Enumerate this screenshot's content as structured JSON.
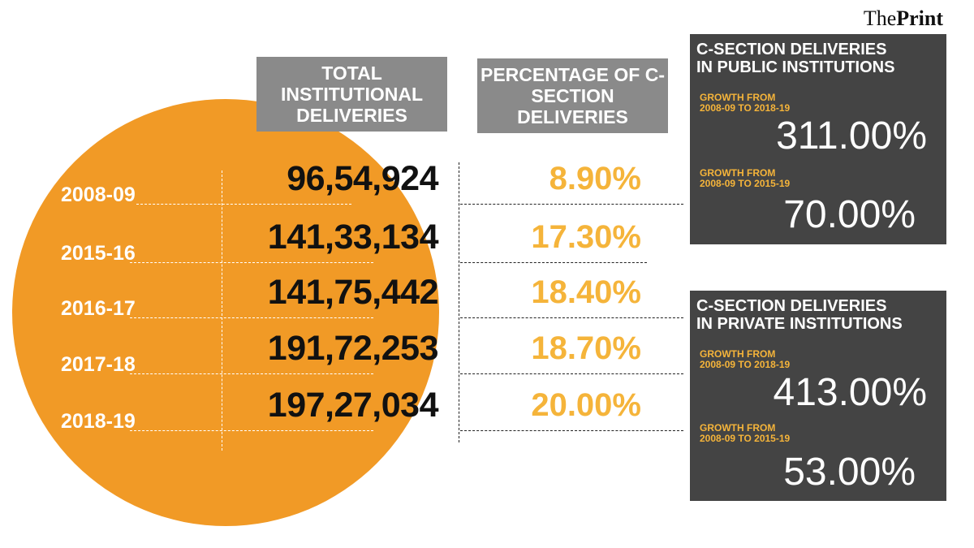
{
  "brand": {
    "logo_light": "The",
    "logo_bold": "Print"
  },
  "headers": {
    "total": "TOTAL INSTITUTIONAL DELIVERIES",
    "percentage": "PERCENTAGE OF C-SECTION DELIVERIES"
  },
  "chart_data": {
    "type": "table",
    "columns": [
      "Year",
      "Total institutional deliveries",
      "Percentage of C-section deliveries"
    ],
    "rows": [
      {
        "year": "2008-09",
        "total": "96,54,924",
        "pct": "8.90%"
      },
      {
        "year": "2015-16",
        "total": "141,33,134",
        "pct": "17.30%"
      },
      {
        "year": "2016-17",
        "total": "141,75,442",
        "pct": "18.40%"
      },
      {
        "year": "2017-18",
        "total": "191,72,253",
        "pct": "18.70%"
      },
      {
        "year": "2018-19",
        "total": "197,27,034",
        "pct": "20.00%"
      }
    ]
  },
  "public_box": {
    "title1": "C-SECTION DELIVERIES",
    "title2": "IN PUBLIC INSTITUTIONS",
    "g1_label1": "GROWTH FROM",
    "g1_label2": "2008-09 TO 2018-19",
    "g1_value": "311.00%",
    "g2_label1": "GROWTH FROM",
    "g2_label2": "2008-09 TO 2015-19",
    "g2_value": "70.00%"
  },
  "private_box": {
    "title1": "C-SECTION DELIVERIES",
    "title2": "IN PRIVATE INSTITUTIONS",
    "g1_label1": "GROWTH FROM",
    "g1_label2": "2008-09 TO 2018-19",
    "g1_value": "413.00%",
    "g2_label1": "GROWTH FROM",
    "g2_label2": "2008-09 TO 2015-19",
    "g2_value": "53.00%"
  }
}
